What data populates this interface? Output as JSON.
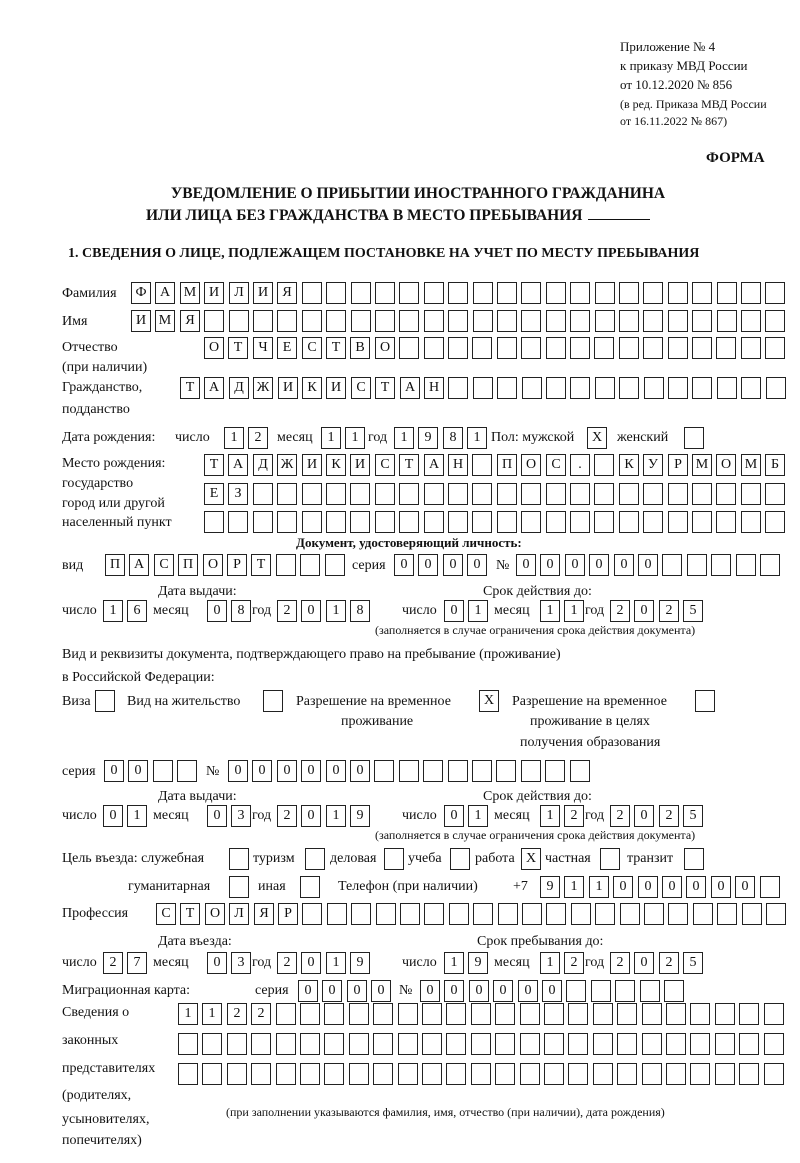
{
  "header": {
    "appendix": "Приложение № 4",
    "order": "к приказу МВД России",
    "order_date": "от 10.12.2020 № 856",
    "revision_line1": "(в ред. Приказа МВД России",
    "revision_line2": "от 16.11.2022 № 867)"
  },
  "form_label": "ФОРМА",
  "title": {
    "line1": "УВЕДОМЛЕНИЕ О ПРИБЫТИИ ИНОСТРАННОГО ГРАЖДАНИНА",
    "line2": "ИЛИ ЛИЦА БЕЗ ГРАЖДАНСТВА В МЕСТО ПРЕБЫВАНИЯ"
  },
  "section1_heading": "1. СВЕДЕНИЯ О ЛИЦЕ, ПОДЛЕЖАЩЕМ ПОСТАНОВКЕ НА УЧЕТ ПО МЕСТУ ПРЕБЫВАНИЯ",
  "labels": {
    "surname": "Фамилия",
    "name": "Имя",
    "patronymic_1": "Отчество",
    "patronymic_2": "(при наличии)",
    "citizenship_1": "Гражданство,",
    "citizenship_2": "подданство",
    "birth_date": "Дата рождения:",
    "day": "число",
    "month": "месяц",
    "year": "год",
    "sex_male": "Пол: мужской",
    "sex_female": "женский",
    "birthplace_1": "Место рождения:",
    "birthplace_2": "государство",
    "birthplace_3": "город или другой",
    "birthplace_4": "населенный пункт",
    "id_doc_heading": "Документ, удостоверяющий личность:",
    "doc_type": "вид",
    "series": "серия",
    "number": "№",
    "issue_date": "Дата выдачи:",
    "valid_until": "Срок действия до:",
    "valid_note": "(заполняется в случае ограничения срока действия документа)",
    "stay_doc_1": "Вид и реквизиты документа, подтверждающего право на пребывание (проживание)",
    "stay_doc_2": "в Российской Федерации:",
    "visa": "Виза",
    "residence_permit": "Вид на жительство",
    "temp_residence_1": "Разрешение на временное",
    "temp_residence_2": "проживание",
    "temp_residence_edu_1": "Разрешение на временное",
    "temp_residence_edu_2": "проживание в целях",
    "temp_residence_edu_3": "получения образования",
    "purpose": "Цель въезда: служебная",
    "tourism": "туризм",
    "business": "деловая",
    "study": "учеба",
    "work": "работа",
    "private": "частная",
    "transit": "транзит",
    "humanitarian": "гуманитарная",
    "other": "иная",
    "phone": "Телефон (при наличии)",
    "phone_prefix": "+7",
    "profession": "Профессия",
    "entry_date": "Дата въезда:",
    "stay_until": "Срок пребывания до:",
    "migration_card": "Миграционная карта:",
    "reps_1": "Сведения о",
    "reps_2": "законных",
    "reps_3": "представителях",
    "reps_4": "(родителях,",
    "reps_5": "усыновителях,",
    "reps_6": "попечителях)",
    "reps_note": "(при заполнении указываются фамилия, имя, отчество (при наличии), дата рождения)"
  },
  "values": {
    "surname": "ФАМИЛИЯ",
    "name": "ИМЯ",
    "patronymic": "ОТЧЕСТВО",
    "citizenship": "ТАДЖИКИСТАН",
    "birth": {
      "day": "12",
      "month": "11",
      "year": "1981"
    },
    "sex_male": "X",
    "sex_female": "",
    "birthplace": [
      "ТАДЖИКИСТАН ПОС. КУРМОМБ",
      "ЕЗ",
      ""
    ],
    "id_doc": {
      "type": "ПАСПОРТ",
      "series": "0000",
      "number": "000000",
      "issued": {
        "day": "16",
        "month": "08",
        "year": "2018"
      },
      "valid": {
        "day": "01",
        "month": "11",
        "year": "2025"
      }
    },
    "stay_doc": {
      "visa": "",
      "residence_permit": "",
      "temp_residence": "X",
      "temp_residence_edu": "",
      "series": "00",
      "number": "000000",
      "issued": {
        "day": "01",
        "month": "03",
        "year": "2019"
      },
      "valid": {
        "day": "01",
        "month": "12",
        "year": "2025"
      }
    },
    "purpose": {
      "service": "",
      "tourism": "",
      "business": "",
      "study": "",
      "work": "X",
      "private": "",
      "transit": "",
      "humanitarian": "",
      "other": ""
    },
    "phone": "911000000",
    "profession": "СТОЛЯР",
    "entry": {
      "day": "27",
      "month": "03",
      "year": "2019"
    },
    "stay_until": {
      "day": "19",
      "month": "12",
      "year": "2025"
    },
    "migration_card": {
      "series": "0000",
      "number": "000000"
    },
    "representatives": [
      "1122",
      "",
      ""
    ]
  }
}
